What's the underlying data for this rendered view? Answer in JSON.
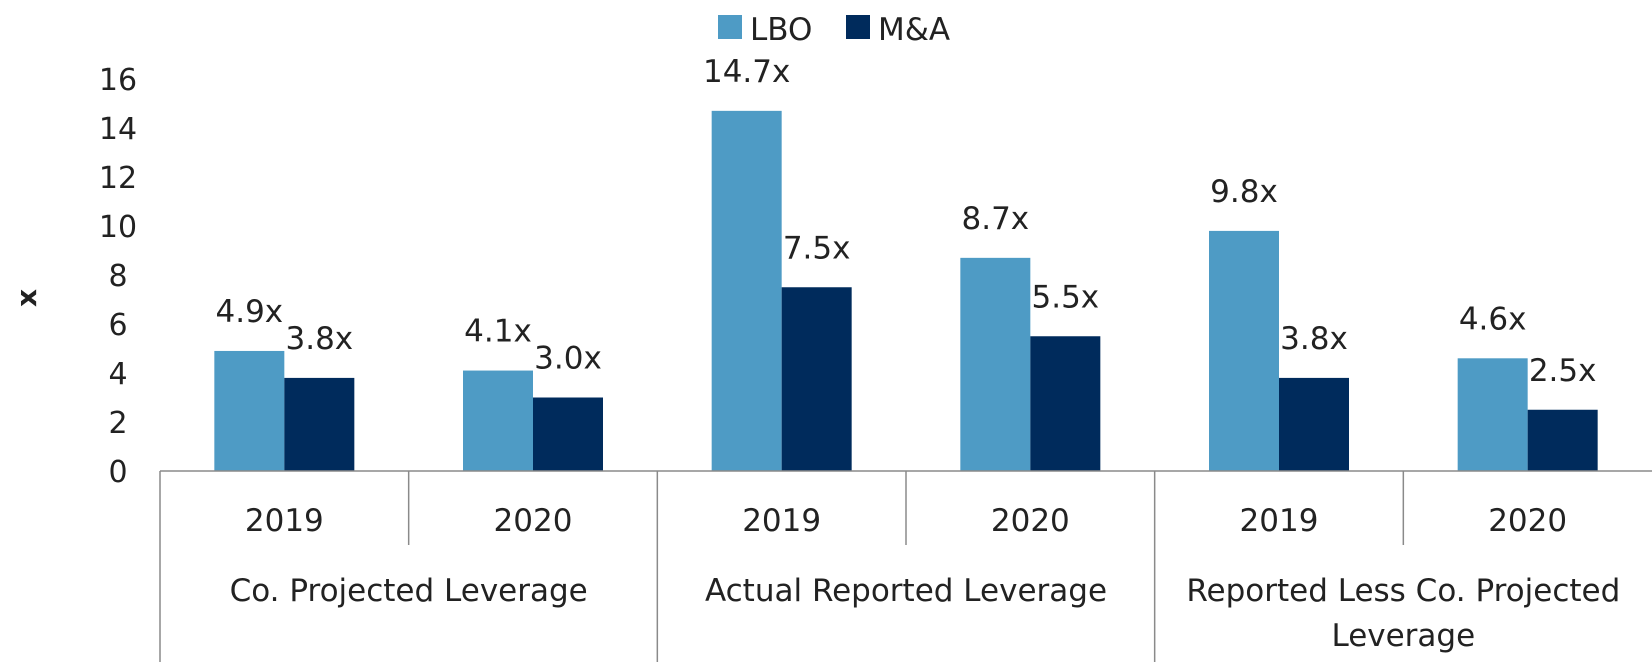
{
  "chart_data": {
    "type": "bar",
    "title": "",
    "xlabel": "",
    "ylabel": "x",
    "ylim": [
      0,
      16
    ],
    "yticks": [
      0,
      2,
      4,
      6,
      8,
      10,
      12,
      14,
      16
    ],
    "legend_position": "top-center",
    "grid": false,
    "groups": [
      {
        "label": "Co. Projected Leverage",
        "categories": [
          "2019",
          "2020"
        ]
      },
      {
        "label": "Actual Reported Leverage",
        "categories": [
          "2019",
          "2020"
        ]
      },
      {
        "label": "Reported Less Co. Projected Leverage",
        "label_lines": [
          "Reported Less Co. Projected",
          "Leverage"
        ],
        "categories": [
          "2019",
          "2020"
        ]
      }
    ],
    "series": [
      {
        "name": "LBO",
        "color": "#4e9bc5",
        "values": [
          4.9,
          4.1,
          14.7,
          8.7,
          9.8,
          4.6
        ],
        "labels": [
          "4.9x",
          "4.1x",
          "14.7x",
          "8.7x",
          "9.8x",
          "4.6x"
        ]
      },
      {
        "name": "M&A",
        "color": "#002b5c",
        "values": [
          3.8,
          3.0,
          7.5,
          5.5,
          3.8,
          2.5
        ],
        "labels": [
          "3.8x",
          "3.0x",
          "7.5x",
          "5.5x",
          "3.8x",
          "2.5x"
        ]
      }
    ]
  }
}
